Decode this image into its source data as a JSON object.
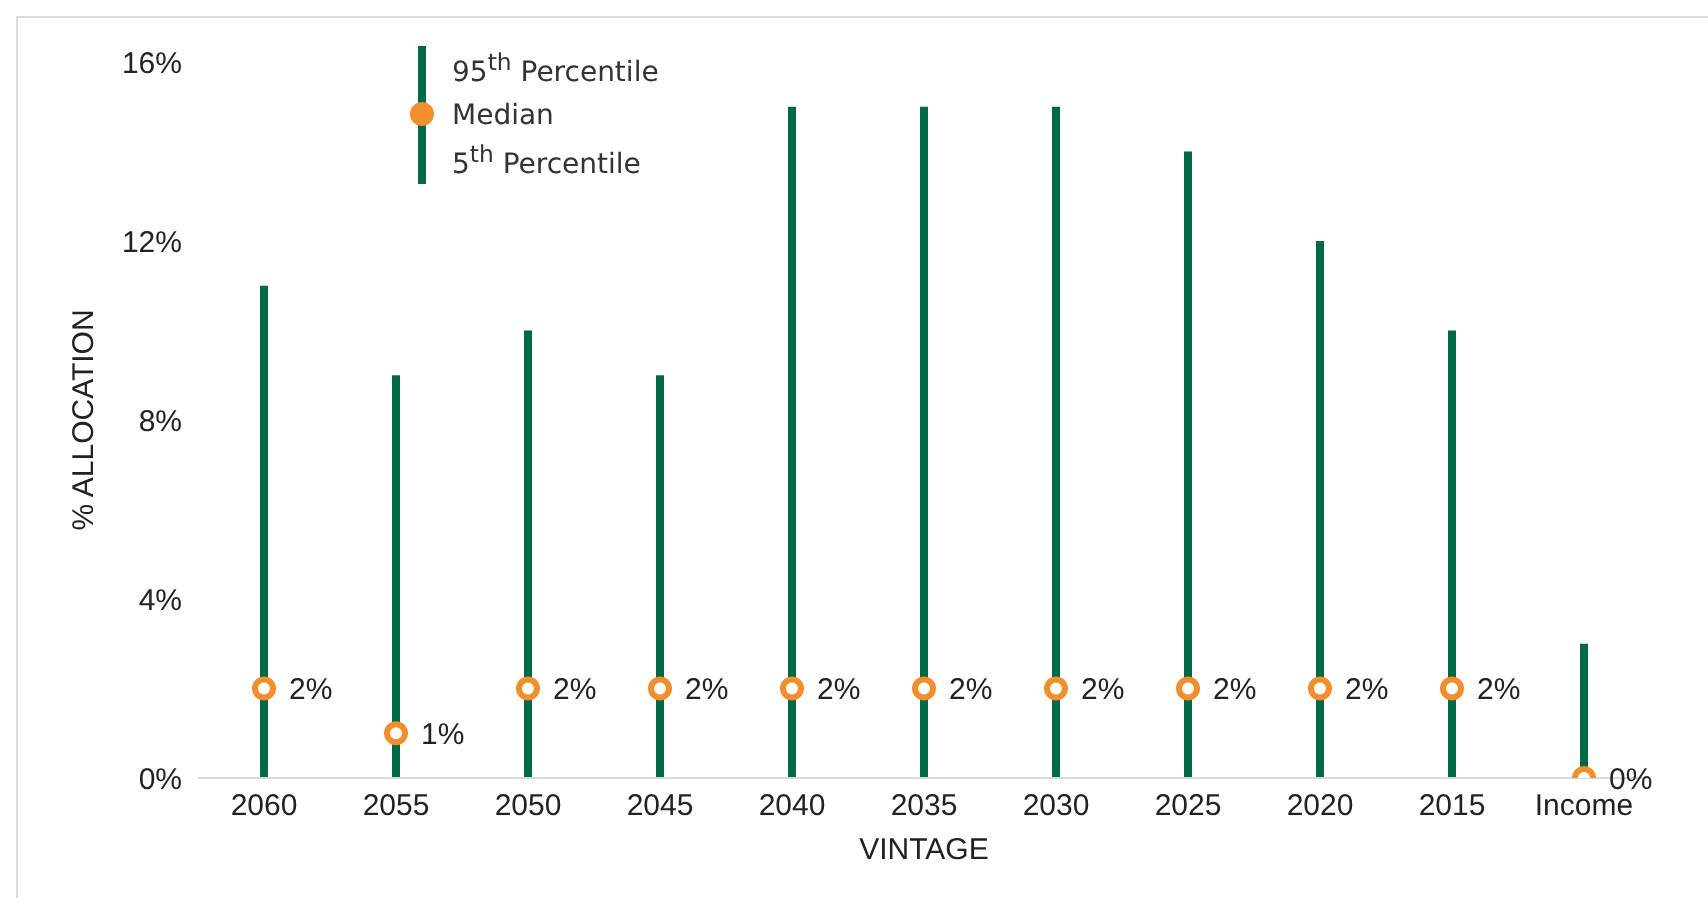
{
  "chart_data": {
    "type": "bar",
    "stacked": true,
    "xlabel": "VINTAGE",
    "ylabel": "% ALLOCATION",
    "categories": [
      "2060",
      "2055",
      "2050",
      "2045",
      "2040",
      "2035",
      "2030",
      "2025",
      "2020",
      "2015",
      "Income"
    ],
    "series": [
      {
        "name": "5$^{th}$ Percentile",
        "color": "#006747",
        "values": [
          0,
          0,
          0,
          0,
          0,
          0,
          0,
          0,
          0,
          0,
          0
        ]
      },
      {
        "name": "95$^{th}$ Percentile",
        "color": "#006747",
        "values": [
          11,
          9,
          10,
          9,
          15,
          15,
          15,
          14,
          12,
          10,
          3
        ]
      },
      {
        "name": "Median",
        "type": "scatter",
        "color": "#f28e2b",
        "values": [
          2,
          1,
          2,
          2,
          2,
          2,
          2,
          2,
          2,
          2,
          0
        ],
        "value_labels": [
          "2%",
          "1%",
          "2%",
          "2%",
          "2%",
          "2%",
          "2%",
          "2%",
          "2%",
          "2%",
          "0%"
        ]
      }
    ],
    "ylim": [
      0,
      16
    ],
    "yticks": [
      {
        "value": 0,
        "label": "0%"
      },
      {
        "value": 4,
        "label": "4%"
      },
      {
        "value": 8,
        "label": "8%"
      },
      {
        "value": 12,
        "label": "12%"
      },
      {
        "value": 16,
        "label": "16%"
      }
    ],
    "grid": false,
    "legend": "top left",
    "marker": "circle"
  }
}
